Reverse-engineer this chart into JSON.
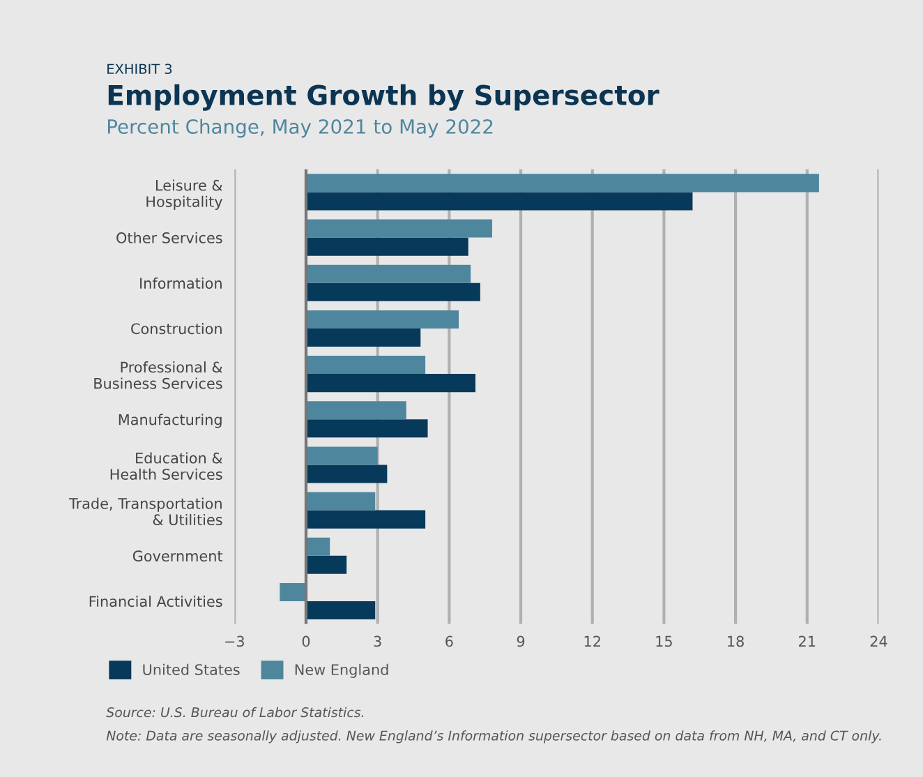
{
  "chart_data": {
    "type": "bar",
    "orientation": "horizontal",
    "title": "Employment Growth by Supersector",
    "subtitle": "Percent Change, May 2021 to May 2022",
    "categories": [
      "Leisure &\nHospitality",
      "Other Services",
      "Information",
      "Construction",
      "Professional &\nBusiness Services",
      "Manufacturing",
      "Education &\nHealth Services",
      "Trade, Transportation\n& Utilities",
      "Government",
      "Financial Activities"
    ],
    "series": [
      {
        "name": "United States",
        "color": "#07395a",
        "values": [
          16.2,
          6.8,
          7.3,
          4.8,
          7.1,
          5.1,
          3.4,
          5.0,
          1.7,
          2.9
        ]
      },
      {
        "name": "New England",
        "color": "#4e869d",
        "values": [
          21.5,
          7.8,
          6.9,
          6.4,
          5.0,
          4.2,
          3.0,
          2.9,
          1.0,
          -1.1
        ]
      }
    ],
    "xlim": [
      -3,
      24
    ],
    "xticks": [
      {
        "value": -3,
        "label": "−3"
      },
      0,
      3,
      6,
      9,
      12,
      15,
      18,
      21,
      24
    ],
    "grid": "x",
    "legend": "bottom left",
    "annotations": [
      "EXHIBIT 3",
      "Source: U.S. Bureau of Labor Statistics.",
      "Note: Data are seasonally adjusted. New England’s Information supersector based on data from NH, MA, and CT only."
    ]
  }
}
